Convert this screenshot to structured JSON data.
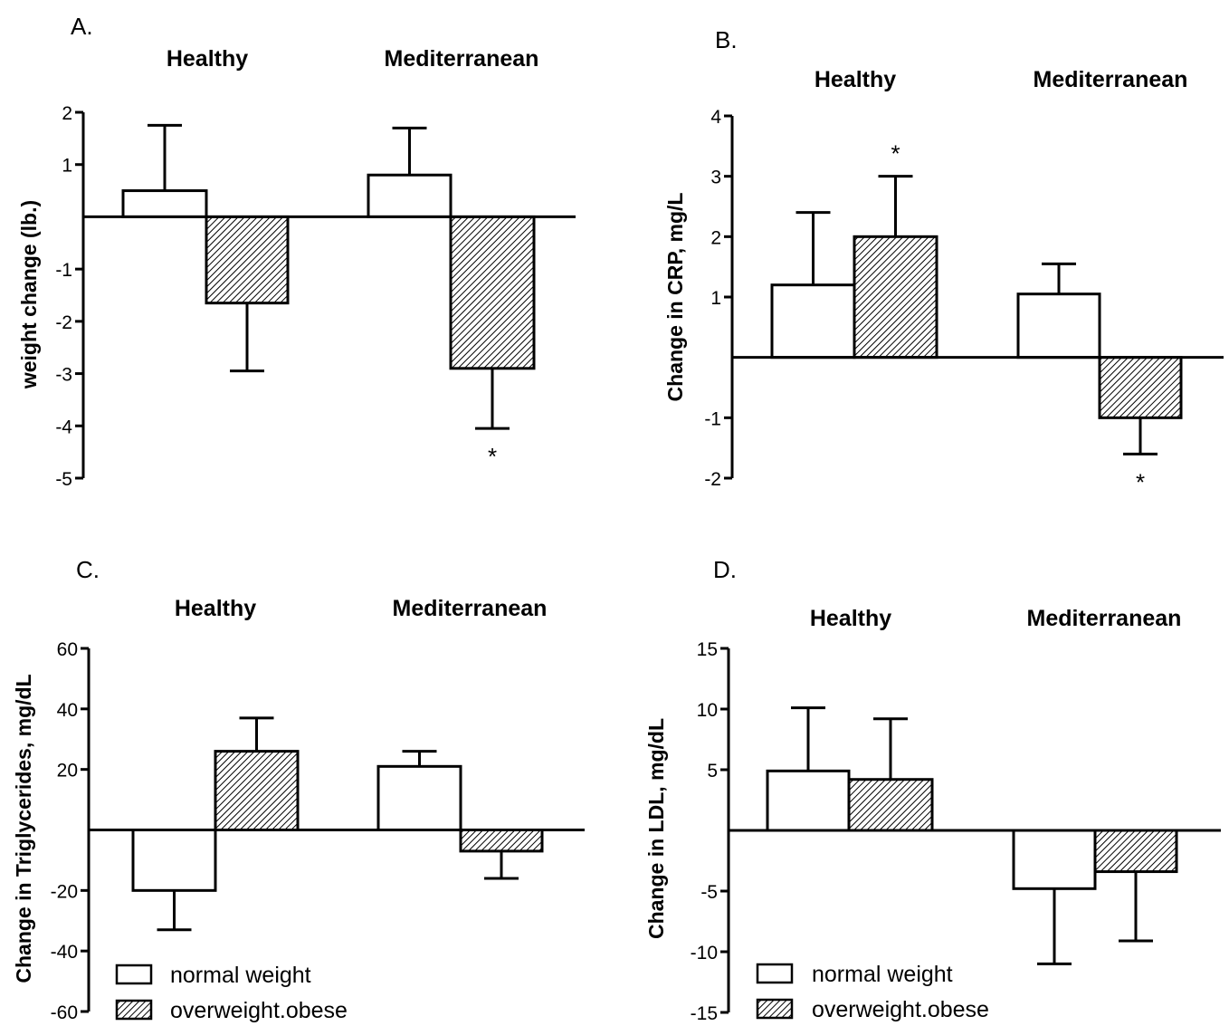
{
  "legend": {
    "normal_label": "normal weight",
    "overweight_label": "overweight.obese"
  },
  "chart_data": [
    {
      "panel": "A.",
      "type": "bar",
      "groups": [
        "Healthy",
        "Mediterranean"
      ],
      "series": [
        {
          "name": "normal weight",
          "values": [
            0.5,
            0.8
          ],
          "errors": [
            1.25,
            0.9
          ]
        },
        {
          "name": "overweight.obese",
          "values": [
            -1.65,
            -2.9
          ],
          "errors": [
            1.3,
            1.15
          ]
        }
      ],
      "ylabel": "weight change (lb.)",
      "ylim": [
        -5,
        2
      ],
      "yticks": [
        -5,
        -4,
        -3,
        -2,
        -1,
        1,
        2
      ],
      "significance": [
        {
          "group": 1,
          "series": 1,
          "label": "*"
        }
      ],
      "legend": false
    },
    {
      "panel": "B.",
      "type": "bar",
      "groups": [
        "Healthy",
        "Mediterranean"
      ],
      "series": [
        {
          "name": "normal weight",
          "values": [
            1.2,
            1.05
          ],
          "errors": [
            1.2,
            0.5
          ]
        },
        {
          "name": "overweight.obese",
          "values": [
            2.0,
            -1.0
          ],
          "errors": [
            1.0,
            0.6
          ]
        }
      ],
      "ylabel": "Change in CRP, mg/L",
      "ylim": [
        -2,
        4
      ],
      "yticks": [
        -2,
        -1,
        1,
        2,
        3,
        4
      ],
      "significance": [
        {
          "group": 0,
          "series": 1,
          "label": "*"
        },
        {
          "group": 1,
          "series": 1,
          "label": "*"
        }
      ],
      "legend": false
    },
    {
      "panel": "C.",
      "type": "bar",
      "groups": [
        "Healthy",
        "Mediterranean"
      ],
      "series": [
        {
          "name": "normal weight",
          "values": [
            -20,
            21
          ],
          "errors": [
            13,
            5
          ]
        },
        {
          "name": "overweight.obese",
          "values": [
            26,
            -7
          ],
          "errors": [
            11,
            9
          ]
        }
      ],
      "ylabel": "Change in Triglycerides, mg/dL",
      "ylim": [
        -60,
        60
      ],
      "yticks": [
        -60,
        -40,
        -20,
        20,
        40,
        60
      ],
      "significance": [],
      "legend": true
    },
    {
      "panel": "D.",
      "type": "bar",
      "groups": [
        "Healthy",
        "Mediterranean"
      ],
      "series": [
        {
          "name": "normal weight",
          "values": [
            4.9,
            -4.8
          ],
          "errors": [
            5.2,
            6.2
          ]
        },
        {
          "name": "overweight.obese",
          "values": [
            4.2,
            -3.4
          ],
          "errors": [
            5.0,
            5.7
          ]
        }
      ],
      "ylabel": "Change in LDL, mg/dL",
      "ylim": [
        -15,
        15
      ],
      "yticks": [
        -15,
        -10,
        -5,
        5,
        10,
        15
      ],
      "significance": [],
      "legend": true
    }
  ]
}
